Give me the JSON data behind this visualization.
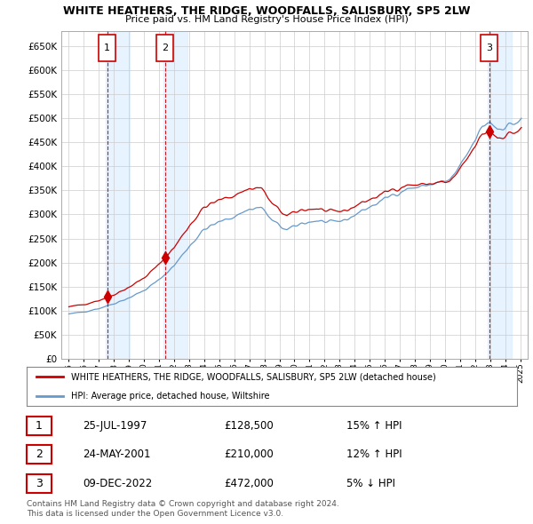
{
  "title": "WHITE HEATHERS, THE RIDGE, WOODFALLS, SALISBURY, SP5 2LW",
  "subtitle": "Price paid vs. HM Land Registry's House Price Index (HPI)",
  "legend_line1": "WHITE HEATHERS, THE RIDGE, WOODFALLS, SALISBURY, SP5 2LW (detached house)",
  "legend_line2": "HPI: Average price, detached house, Wiltshire",
  "sale_points": [
    {
      "label": "1",
      "date_num": 1997.56,
      "price": 128500
    },
    {
      "label": "2",
      "date_num": 2001.39,
      "price": 210000
    },
    {
      "label": "3",
      "date_num": 2022.94,
      "price": 472000
    }
  ],
  "table_rows": [
    {
      "num": "1",
      "date": "25-JUL-1997",
      "price": "£128,500",
      "hpi": "15% ↑ HPI"
    },
    {
      "num": "2",
      "date": "24-MAY-2001",
      "price": "£210,000",
      "hpi": "12% ↑ HPI"
    },
    {
      "num": "3",
      "date": "09-DEC-2022",
      "price": "£472,000",
      "hpi": "5% ↓ HPI"
    }
  ],
  "footer": "Contains HM Land Registry data © Crown copyright and database right 2024.\nThis data is licensed under the Open Government Licence v3.0.",
  "ylim": [
    0,
    680000
  ],
  "yticks": [
    0,
    50000,
    100000,
    150000,
    200000,
    250000,
    300000,
    350000,
    400000,
    450000,
    500000,
    550000,
    600000,
    650000
  ],
  "red_color": "#cc0000",
  "blue_color": "#6699cc",
  "shade_color": "#ddeeff",
  "grid_color": "#cccccc",
  "bg_color": "#ffffff"
}
